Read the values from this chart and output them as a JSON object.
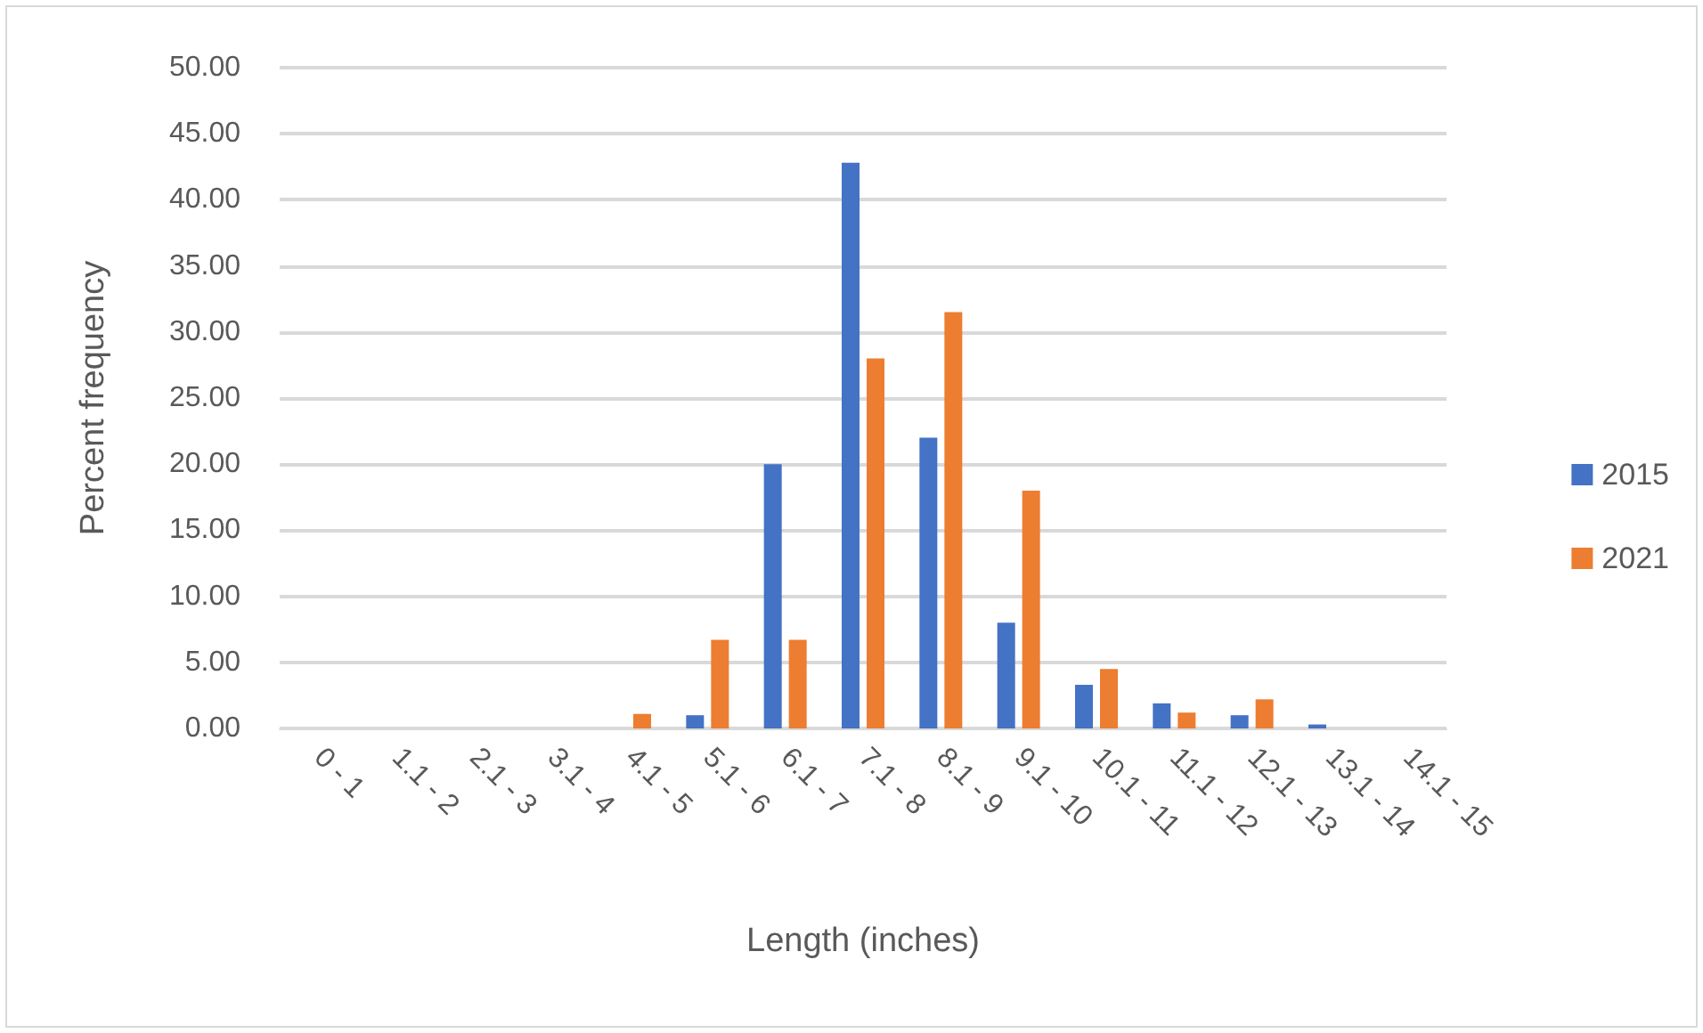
{
  "chart_data": {
    "type": "bar",
    "xlabel": "Length (inches)",
    "ylabel": "Percent frequency",
    "categories": [
      "0 - 1",
      "1.1 - 2",
      "2.1 - 3",
      "3.1 - 4",
      "4.1 - 5",
      "5.1 - 6",
      "6.1 - 7",
      "7.1 - 8",
      "8.1 - 9",
      "9.1 - 10",
      "10.1 - 11",
      "11.1 - 12",
      "12.1 - 13",
      "13.1 - 14",
      "14.1 - 15"
    ],
    "series": [
      {
        "name": "2015",
        "color": "#4472c4",
        "values": [
          0,
          0,
          0,
          0,
          0,
          1.0,
          20.0,
          42.8,
          22.0,
          8.0,
          3.3,
          1.9,
          1.0,
          0.3,
          0
        ]
      },
      {
        "name": "2021",
        "color": "#ed7d31",
        "values": [
          0,
          0,
          0,
          0,
          1.1,
          6.7,
          6.7,
          28.0,
          31.5,
          18.0,
          4.5,
          1.2,
          2.2,
          0,
          0
        ]
      }
    ],
    "ylim": [
      0,
      50
    ],
    "yticks": [
      {
        "value": 0,
        "label": "0.00"
      },
      {
        "value": 5,
        "label": "5.00"
      },
      {
        "value": 10,
        "label": "10.00"
      },
      {
        "value": 15,
        "label": "15.00"
      },
      {
        "value": 20,
        "label": "20.00"
      },
      {
        "value": 25,
        "label": "25.00"
      },
      {
        "value": 30,
        "label": "30.00"
      },
      {
        "value": 35,
        "label": "35.00"
      },
      {
        "value": 40,
        "label": "40.00"
      },
      {
        "value": 45,
        "label": "45.00"
      },
      {
        "value": 50,
        "label": "50.00"
      }
    ],
    "grid": "y",
    "legend": "right"
  }
}
